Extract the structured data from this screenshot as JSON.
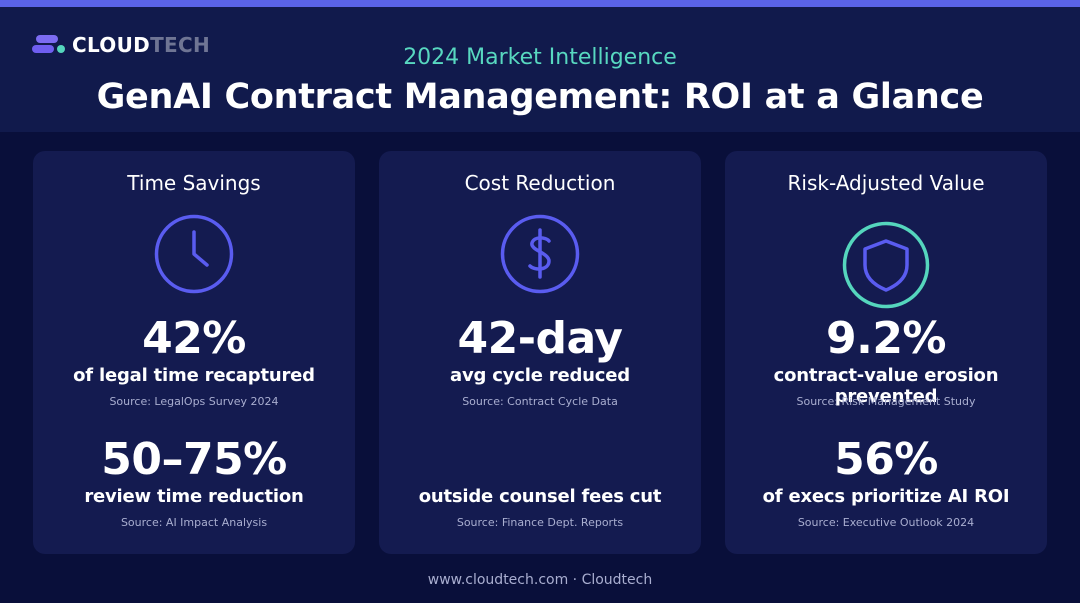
{
  "brand": {
    "logo_text_primary": "CLOUD",
    "logo_text_secondary": "TECH"
  },
  "header": {
    "subtitle": "2024 Market Intelligence",
    "title": "GenAI Contract Management: ROI at a Glance"
  },
  "cards": [
    {
      "title": "Time Savings",
      "icon": "clock-icon",
      "icon_color": "#5a5cf0",
      "stats": [
        {
          "value": "42%",
          "label": "of legal time recaptured",
          "source": "Source: LegalOps Survey 2024"
        },
        {
          "value": "50–75%",
          "label": "review time reduction",
          "source": "Source: AI Impact Analysis"
        }
      ]
    },
    {
      "title": "Cost Reduction",
      "icon": "dollar-icon",
      "icon_color": "#5a5cf0",
      "stats": [
        {
          "value": "42-day",
          "label": "avg cycle reduced",
          "source": "Source: Contract Cycle Data"
        },
        {
          "value": "",
          "label": "outside counsel fees cut",
          "source": "Source: Finance Dept. Reports"
        }
      ]
    },
    {
      "title": "Risk-Adjusted Value",
      "icon": "shield-icon",
      "icon_color": "#55d6bd",
      "stats": [
        {
          "value": "9.2%",
          "label": "contract-value erosion prevented",
          "source": "Source: Risk Management Study"
        },
        {
          "value": "56%",
          "label": "of execs prioritize AI ROI",
          "source": "Source: Executive Outlook 2024"
        }
      ]
    }
  ],
  "footer": {
    "text": "www.cloudtech.com · Cloudtech"
  },
  "colors": {
    "background": "#090f3a",
    "header_band": "#111a4c",
    "card": "#141b50",
    "accent_purple": "#5a5cf0",
    "accent_teal": "#55d6bd",
    "top_strip": "#5a63e8"
  }
}
